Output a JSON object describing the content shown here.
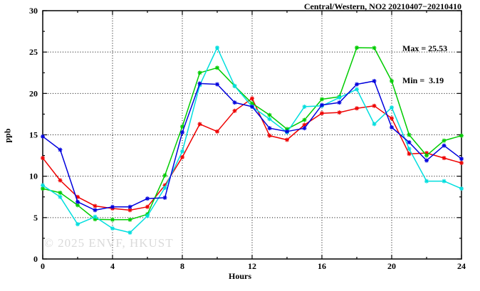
{
  "title": "Central/Western, NO2 20210407−20210410",
  "annotations": {
    "max_label": "Max = 25.53",
    "min_label": "Min =  3.19"
  },
  "watermark": "© 2025 ENVF, HKUST",
  "chart_data": {
    "type": "line",
    "title": "Central/Western, NO2 20210407−20210410",
    "xlabel": "Hours",
    "ylabel": "ppb",
    "xlim": [
      0,
      24
    ],
    "ylim": [
      0,
      30
    ],
    "xticks_major": [
      0,
      4,
      8,
      12,
      16,
      20,
      24
    ],
    "xticks_minor": [
      2,
      6,
      10,
      14,
      18,
      22
    ],
    "yticks_major": [
      0,
      5,
      10,
      15,
      20,
      25,
      30
    ],
    "yticks_minor": [
      2.5,
      7.5,
      12.5,
      17.5,
      22.5,
      27.5
    ],
    "grid": true,
    "legend_position": "none",
    "stat_max": 25.53,
    "stat_min": 3.19,
    "marker": "star",
    "x": [
      0,
      1,
      2,
      3,
      4,
      5,
      6,
      7,
      8,
      9,
      10,
      11,
      12,
      13,
      14,
      15,
      16,
      17,
      18,
      19,
      20,
      21,
      22,
      23,
      24
    ],
    "series": [
      {
        "name": "series-red",
        "color": "#ee0000",
        "values": [
          12.2,
          9.5,
          7.5,
          6.4,
          6.1,
          5.9,
          6.3,
          8.9,
          12.3,
          16.3,
          15.4,
          17.9,
          19.4,
          14.9,
          14.4,
          16.2,
          17.6,
          17.7,
          18.2,
          18.5,
          17.0,
          12.7,
          12.8,
          12.2,
          11.6
        ]
      },
      {
        "name": "series-green",
        "color": "#00cc00",
        "values": [
          8.5,
          8.0,
          6.5,
          4.8,
          4.75,
          4.75,
          5.4,
          10.1,
          16.0,
          22.5,
          23.1,
          20.9,
          18.8,
          17.4,
          15.7,
          16.8,
          19.3,
          19.6,
          25.53,
          25.5,
          21.5,
          15.0,
          12.5,
          14.3,
          14.9
        ]
      },
      {
        "name": "series-cyan",
        "color": "#00dede",
        "values": [
          8.9,
          7.5,
          4.2,
          5.1,
          3.7,
          3.19,
          5.2,
          8.6,
          13.0,
          21.0,
          25.53,
          20.9,
          18.4,
          16.9,
          15.3,
          18.4,
          18.5,
          19.5,
          20.5,
          16.3,
          18.3,
          13.3,
          9.4,
          9.4,
          8.5
        ]
      },
      {
        "name": "series-blue",
        "color": "#0000dd",
        "values": [
          14.8,
          13.2,
          6.9,
          5.9,
          6.3,
          6.3,
          7.3,
          7.4,
          15.3,
          21.2,
          21.1,
          18.9,
          18.4,
          15.8,
          15.4,
          15.8,
          18.6,
          18.9,
          21.1,
          21.5,
          15.9,
          14.1,
          11.9,
          13.7,
          12.1
        ]
      }
    ]
  },
  "plot_style": {
    "axis_color": "#000000",
    "grid_color": "#000000",
    "background": "#ffffff",
    "watermark_color": "#dadada"
  }
}
